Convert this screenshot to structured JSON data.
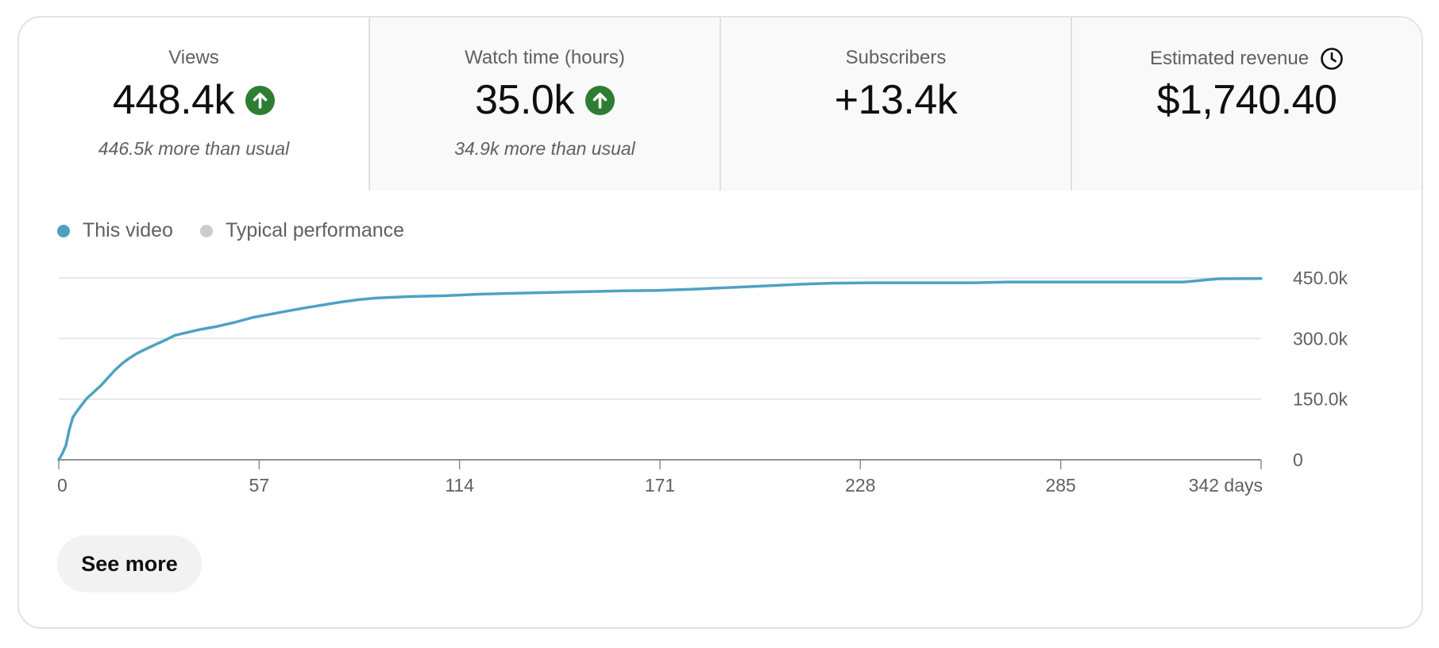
{
  "metrics": [
    {
      "title": "Views",
      "value": "448.4k",
      "trend": "up",
      "subtitle": "446.5k more than usual",
      "active": true
    },
    {
      "title": "Watch time (hours)",
      "value": "35.0k",
      "trend": "up",
      "subtitle": "34.9k more than usual",
      "active": false
    },
    {
      "title": "Subscribers",
      "value": "+13.4k",
      "trend": "none",
      "subtitle": "",
      "active": false
    },
    {
      "title": "Estimated revenue",
      "value": "$1,740.40",
      "trend": "none",
      "subtitle": "",
      "icon": "clock-icon",
      "active": false
    }
  ],
  "legend": {
    "this_video": "This video",
    "typical": "Typical performance"
  },
  "colors": {
    "this_video": "#4fa1c4",
    "typical": "#cccccc",
    "trend_up": "#2e7d32",
    "grid": "#e0e0e0",
    "axis": "#909090"
  },
  "see_more_label": "See more",
  "chart_data": {
    "type": "line",
    "x_ticks": [
      "0",
      "57",
      "114",
      "171",
      "228",
      "285",
      "342 days"
    ],
    "y_ticks": [
      "0",
      "150.0k",
      "300.0k",
      "450.0k"
    ],
    "xlim": [
      0,
      342
    ],
    "ylim": [
      0,
      450000
    ],
    "grid": true,
    "legend_position": "top-left",
    "series": [
      {
        "name": "This video",
        "x": [
          0,
          1,
          2,
          3,
          4,
          5,
          6,
          8,
          10,
          12,
          14,
          16,
          18,
          20,
          22,
          24,
          26,
          28,
          30,
          33,
          36,
          40,
          45,
          50,
          55,
          60,
          65,
          70,
          75,
          80,
          85,
          90,
          95,
          100,
          110,
          120,
          130,
          140,
          150,
          160,
          170,
          180,
          190,
          200,
          210,
          220,
          230,
          240,
          250,
          260,
          270,
          280,
          290,
          300,
          310,
          320,
          330,
          342
        ],
        "y": [
          0,
          15000,
          35000,
          75000,
          105000,
          118000,
          130000,
          152000,
          168000,
          184000,
          203000,
          222000,
          238000,
          251000,
          262000,
          271000,
          279000,
          287000,
          295000,
          308000,
          314000,
          322000,
          330000,
          340000,
          352000,
          360000,
          368000,
          376000,
          383000,
          390000,
          396000,
          400000,
          402000,
          404000,
          406000,
          410000,
          412000,
          414000,
          416000,
          418000,
          419000,
          422000,
          426000,
          430000,
          434000,
          437000,
          438000,
          438000,
          438000,
          438000,
          440000,
          440000,
          440000,
          440000,
          440000,
          440000,
          448000,
          448400
        ]
      }
    ]
  }
}
